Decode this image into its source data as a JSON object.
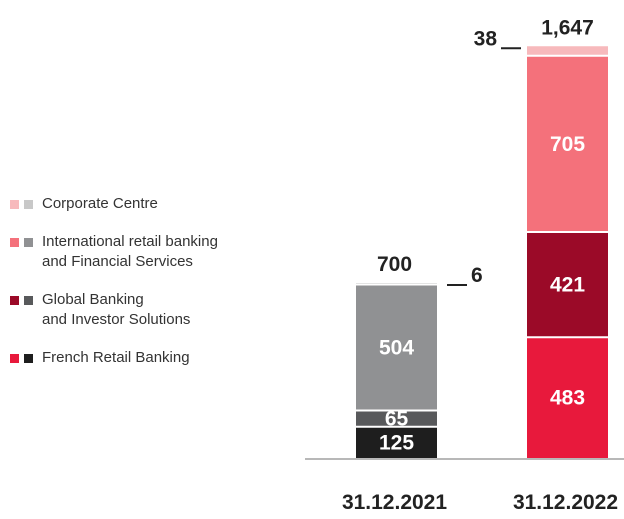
{
  "chart_data": {
    "type": "stacked_bar",
    "categories": [
      "31.12.2021",
      "31.12.2022"
    ],
    "series": [
      {
        "name": "French Retail Banking",
        "colors": [
          "#1e1e1e",
          "#e8193c"
        ],
        "values": [
          125,
          483
        ]
      },
      {
        "name": "Global Banking\nand Investor Solutions",
        "colors": [
          "#58595b",
          "#9b0a28"
        ],
        "values": [
          65,
          421
        ]
      },
      {
        "name": "International retail banking\nand Financial Services",
        "colors": [
          "#909193",
          "#f4717b"
        ],
        "values": [
          504,
          705
        ]
      },
      {
        "name": "Corporate Centre",
        "colors": [
          "#c8c8c8",
          "#f7b9bc"
        ],
        "values": [
          6,
          38
        ]
      }
    ],
    "totals": [
      700,
      1647
    ],
    "totals_labels": [
      "700",
      "1,647"
    ],
    "ylim": [
      0,
      1700
    ]
  }
}
